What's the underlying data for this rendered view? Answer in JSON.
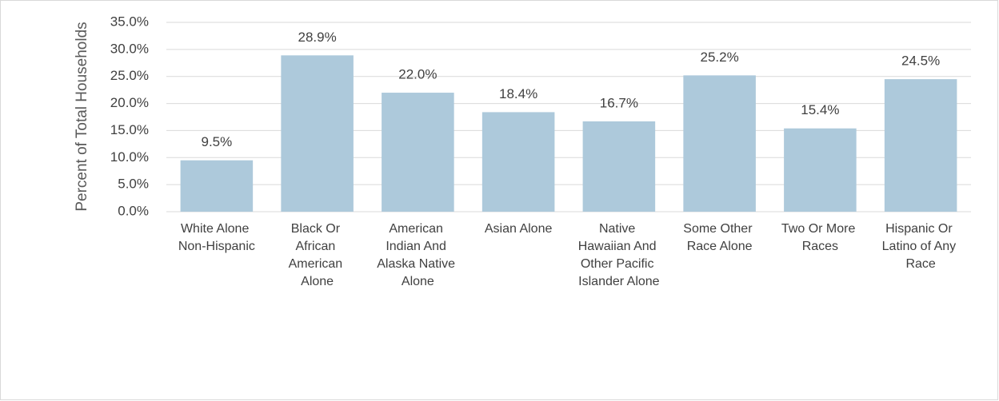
{
  "chart_data": {
    "type": "bar",
    "y_label": "Percent of Total Households",
    "categories": [
      "White Alone Non-Hispanic",
      "Black Or African American Alone",
      "American Indian And Alaska Native Alone",
      "Asian Alone",
      "Native Hawaiian And Other Pacific Islander Alone",
      "Some Other Race Alone",
      "Two Or More Races",
      "Hispanic Or Latino of Any Race"
    ],
    "values": [
      9.5,
      28.9,
      22.0,
      18.4,
      16.7,
      25.2,
      15.4,
      24.5
    ],
    "value_labels": [
      "9.5%",
      "28.9%",
      "22.0%",
      "18.4%",
      "16.7%",
      "25.2%",
      "15.4%",
      "24.5%"
    ],
    "color": "#adc9db",
    "ylim": [
      0,
      35
    ],
    "yticks": [
      {
        "value": 0,
        "label": "0.0%"
      },
      {
        "value": 5,
        "label": "5.0%"
      },
      {
        "value": 10,
        "label": "10.0%"
      },
      {
        "value": 15,
        "label": "15.0%"
      },
      {
        "value": 20,
        "label": "20.0%"
      },
      {
        "value": 25,
        "label": "25.0%"
      },
      {
        "value": 30,
        "label": "30.0%"
      },
      {
        "value": 35,
        "label": "35.0%"
      }
    ],
    "grid": true
  }
}
